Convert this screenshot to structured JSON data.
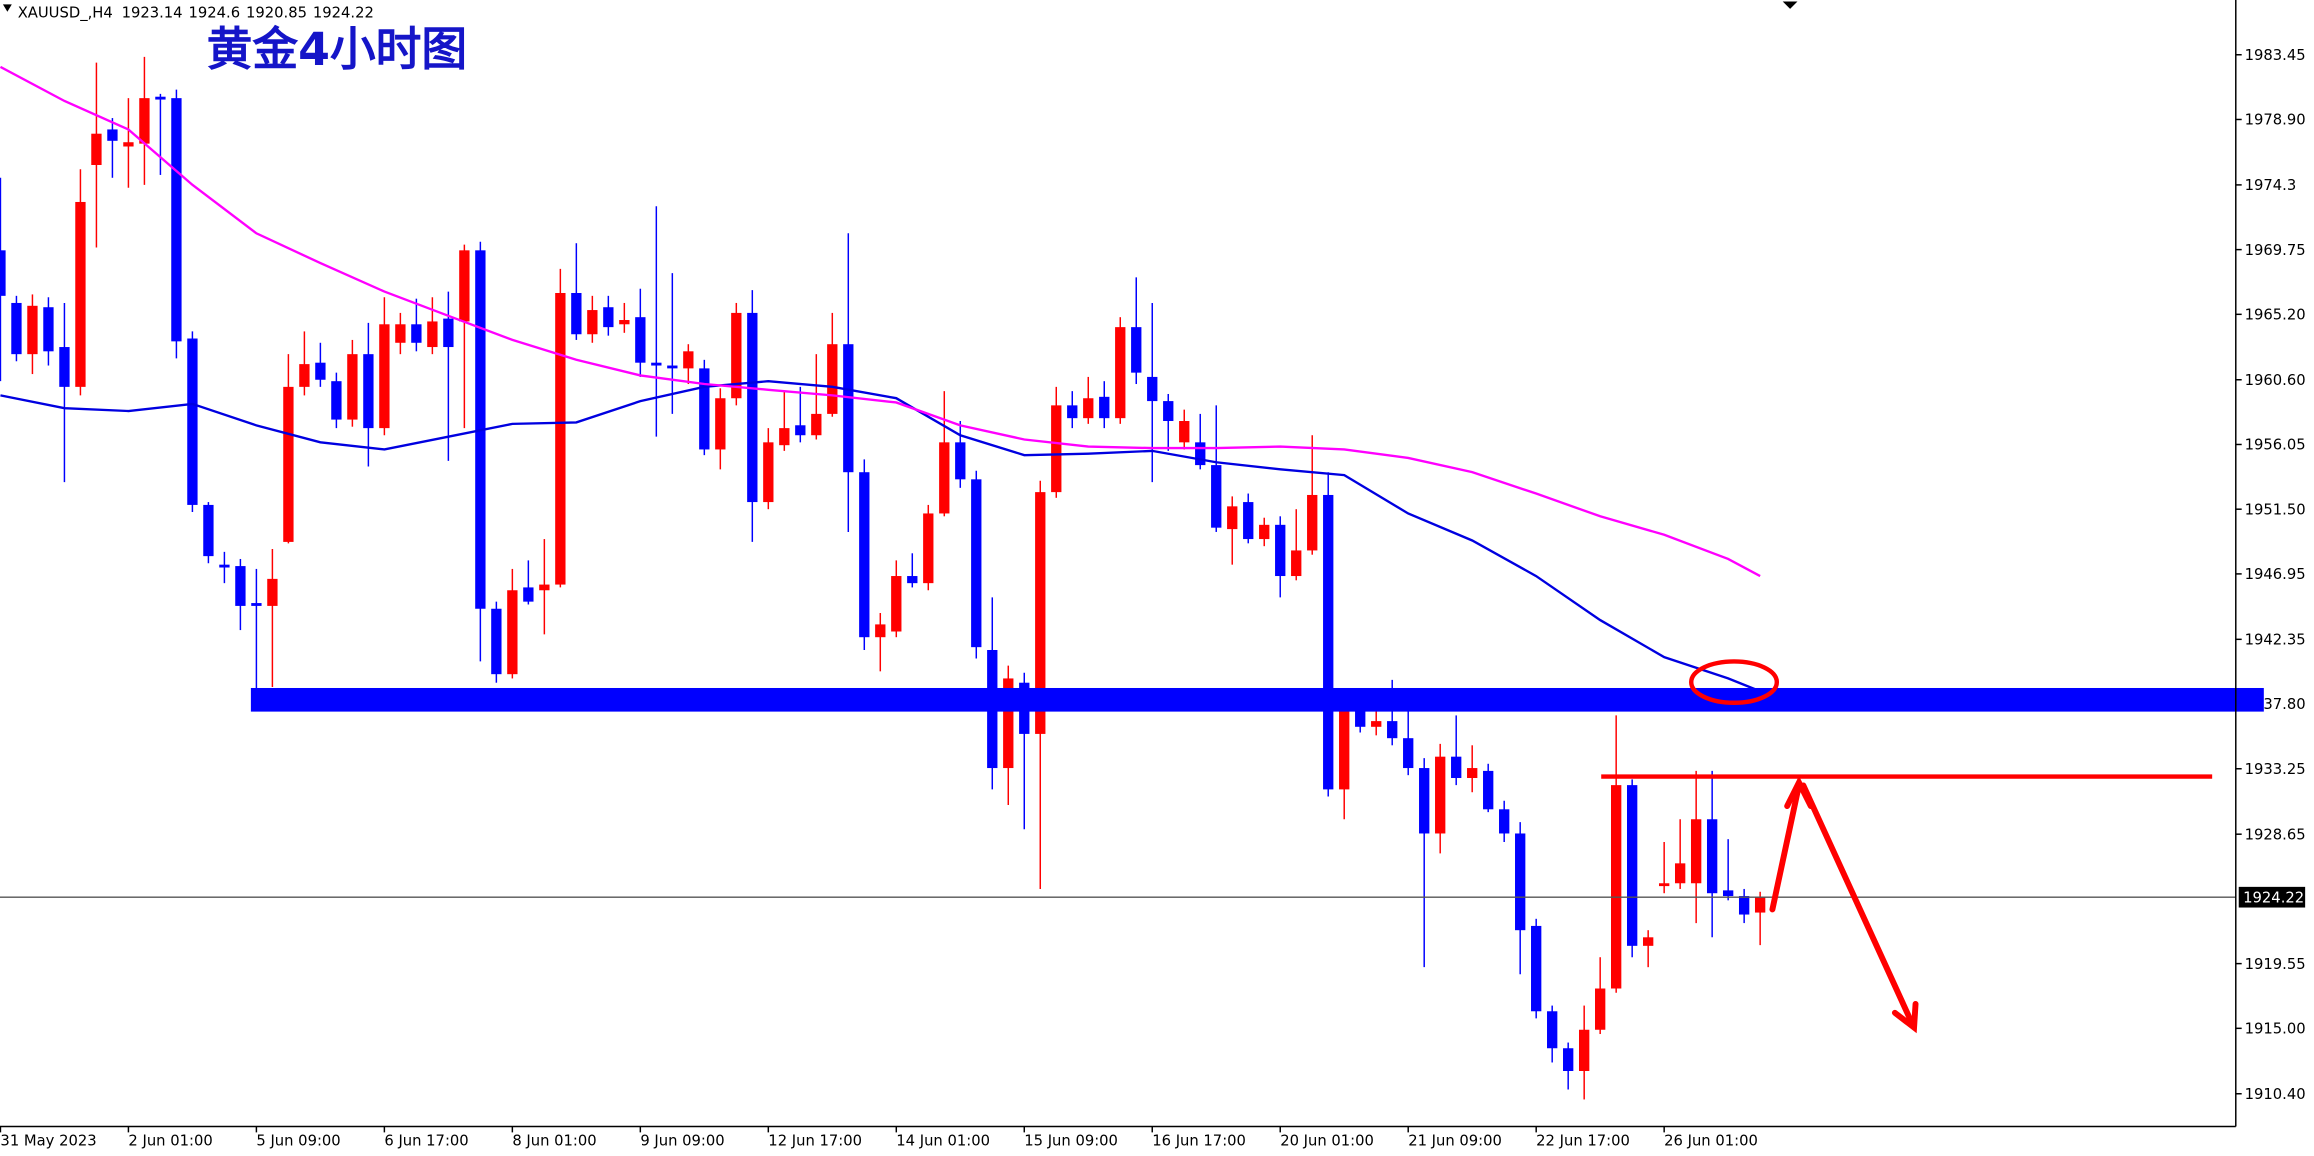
{
  "chart_data": {
    "type": "candlestick",
    "title": "黄金4小时图",
    "symbol": "XAUUSD_,H4",
    "up_color": "#ff0000",
    "down_color": "#0000ff",
    "categories": [
      "31 May 2023",
      null,
      null,
      null,
      null,
      null,
      null,
      null,
      "2 Jun 01:00",
      null,
      null,
      null,
      null,
      null,
      null,
      null,
      "5 Jun 09:00",
      null,
      null,
      null,
      null,
      null,
      null,
      null,
      "6 Jun 17:00",
      null,
      null,
      null,
      null,
      null,
      null,
      null,
      "8 Jun 01:00",
      null,
      null,
      null,
      null,
      null,
      null,
      null,
      "9 Jun 09:00",
      null,
      null,
      null,
      null,
      null,
      null,
      null,
      "12 Jun 17:00",
      null,
      null,
      null,
      null,
      null,
      null,
      null,
      "14 Jun 01:00",
      null,
      null,
      null,
      null,
      null,
      null,
      null,
      "15 Jun 09:00",
      null,
      null,
      null,
      null,
      null,
      null,
      null,
      "16 Jun 17:00",
      null,
      null,
      null,
      null,
      null,
      null,
      null,
      "20 Jun 01:00",
      null,
      null,
      null,
      null,
      null,
      null,
      null,
      "21 Jun 09:00",
      null,
      null,
      null,
      null,
      null,
      null,
      null,
      "22 Jun 17:00",
      null,
      null,
      null,
      null,
      null,
      null,
      null,
      "26 Jun 01:00",
      null,
      null,
      null,
      null,
      null,
      null
    ],
    "open": [
      1969.7,
      1966.0,
      1962.4,
      1965.7,
      1962.9,
      1960.1,
      1975.7,
      1978.2,
      1977.0,
      1977.2,
      1980.5,
      1980.4,
      1963.5,
      1951.8,
      1947.6,
      1947.5,
      1944.9,
      1944.7,
      1949.2,
      1960.1,
      1961.8,
      1960.5,
      1957.8,
      1962.4,
      1957.2,
      1963.2,
      1964.5,
      1962.9,
      1964.9,
      1964.7,
      1969.7,
      1944.5,
      1939.9,
      1946.0,
      1945.8,
      1946.2,
      1966.7,
      1963.8,
      1965.7,
      1964.5,
      1965.0,
      1961.8,
      1961.6,
      1961.4,
      1961.4,
      1955.7,
      1959.3,
      1965.3,
      1952.0,
      1956.0,
      1957.4,
      1956.7,
      1958.2,
      1963.1,
      1954.1,
      1942.5,
      1942.9,
      1946.8,
      1946.3,
      1951.2,
      1956.2,
      1953.6,
      1941.6,
      1933.3,
      1939.3,
      1935.7,
      1952.7,
      1958.8,
      1957.9,
      1959.4,
      1957.9,
      1964.3,
      1960.8,
      1959.1,
      1956.2,
      1956.2,
      1954.6,
      1950.1,
      1952.0,
      1949.4,
      1950.4,
      1946.8,
      1948.6,
      1952.5,
      1931.8,
      1937.3,
      1936.2,
      1936.6,
      1935.4,
      1933.3,
      1928.7,
      1934.1,
      1932.6,
      1933.1,
      1930.4,
      1928.7,
      1922.2,
      1916.2,
      1913.6,
      1912.0,
      1914.9,
      1917.8,
      1932.1,
      1920.8,
      1925.0,
      1925.2,
      1925.2,
      1929.7,
      1924.7,
      1924.3,
      1923.14
    ],
    "high": [
      1974.8,
      1966.5,
      1966.6,
      1966.4,
      1966.0,
      1975.4,
      1982.9,
      1979.0,
      1980.4,
      1983.3,
      1980.7,
      1981.0,
      1964.0,
      1952.0,
      1948.5,
      1948.0,
      1947.3,
      1948.7,
      1962.4,
      1964.0,
      1963.2,
      1961.1,
      1963.4,
      1964.6,
      1966.4,
      1965.3,
      1966.3,
      1966.4,
      1966.8,
      1970.1,
      1970.3,
      1945.0,
      1947.3,
      1947.9,
      1949.4,
      1968.4,
      1970.2,
      1966.5,
      1966.5,
      1966.0,
      1967.0,
      1972.8,
      1968.1,
      1963.1,
      1962.0,
      1960.0,
      1966.0,
      1966.9,
      1957.2,
      1959.8,
      1960.1,
      1962.4,
      1965.3,
      1970.9,
      1955.0,
      1944.2,
      1947.9,
      1948.4,
      1951.8,
      1959.8,
      1957.7,
      1954.2,
      1945.3,
      1940.5,
      1940.0,
      1953.5,
      1960.1,
      1959.8,
      1960.8,
      1960.5,
      1965.0,
      1967.8,
      1966.0,
      1959.6,
      1958.5,
      1958.2,
      1958.8,
      1952.4,
      1952.6,
      1950.9,
      1951.0,
      1951.5,
      1956.7,
      1954.1,
      1938.5,
      1938.2,
      1938.5,
      1939.5,
      1937.5,
      1934.0,
      1935.0,
      1937.0,
      1934.9,
      1933.6,
      1931.0,
      1929.5,
      1922.7,
      1916.6,
      1914.0,
      1916.6,
      1920.0,
      1937.0,
      1932.5,
      1921.9,
      1928.1,
      1929.7,
      1933.1,
      1933.1,
      1928.3,
      1924.8,
      1924.6
    ],
    "low": [
      1960.5,
      1961.9,
      1961.0,
      1961.6,
      1953.4,
      1959.5,
      1969.9,
      1974.8,
      1974.1,
      1974.3,
      1975.0,
      1962.1,
      1951.3,
      1947.7,
      1946.3,
      1943.0,
      1938.5,
      1939.0,
      1949.1,
      1959.5,
      1960.1,
      1957.2,
      1957.3,
      1954.5,
      1956.7,
      1962.4,
      1962.6,
      1962.4,
      1954.9,
      1957.2,
      1940.8,
      1939.3,
      1939.6,
      1944.8,
      1942.7,
      1946.0,
      1963.4,
      1963.2,
      1963.7,
      1963.9,
      1960.8,
      1956.6,
      1958.2,
      1960.3,
      1955.3,
      1954.3,
      1958.8,
      1949.2,
      1951.5,
      1955.6,
      1956.2,
      1956.4,
      1958.0,
      1949.9,
      1941.6,
      1940.1,
      1942.5,
      1946.0,
      1945.8,
      1951.0,
      1953.0,
      1941.0,
      1931.8,
      1930.7,
      1929.0,
      1924.8,
      1952.3,
      1957.2,
      1957.5,
      1957.2,
      1957.5,
      1960.3,
      1953.4,
      1955.6,
      1955.7,
      1954.3,
      1949.9,
      1947.6,
      1949.1,
      1948.9,
      1945.3,
      1946.5,
      1948.3,
      1931.3,
      1929.7,
      1935.8,
      1935.6,
      1934.9,
      1932.8,
      1919.3,
      1927.3,
      1932.1,
      1931.6,
      1930.2,
      1928.1,
      1918.8,
      1915.7,
      1912.6,
      1910.7,
      1910.0,
      1914.6,
      1917.5,
      1920.0,
      1919.3,
      1924.5,
      1924.8,
      1922.4,
      1921.4,
      1924.0,
      1922.4,
      1920.85
    ],
    "close": [
      1966.5,
      1962.4,
      1965.8,
      1962.6,
      1960.1,
      1973.1,
      1977.9,
      1977.4,
      1977.3,
      1980.4,
      1980.3,
      1963.3,
      1951.8,
      1948.2,
      1947.4,
      1944.7,
      1944.7,
      1946.6,
      1960.1,
      1961.7,
      1960.6,
      1957.8,
      1962.4,
      1957.2,
      1964.5,
      1964.5,
      1963.2,
      1964.7,
      1962.9,
      1969.7,
      1944.5,
      1939.9,
      1945.8,
      1945.0,
      1946.2,
      1966.7,
      1963.8,
      1965.5,
      1964.3,
      1964.8,
      1961.8,
      1961.6,
      1961.4,
      1962.6,
      1955.7,
      1959.3,
      1965.3,
      1952.0,
      1956.2,
      1957.2,
      1956.7,
      1958.2,
      1963.1,
      1954.1,
      1942.5,
      1943.4,
      1946.8,
      1946.3,
      1951.2,
      1956.2,
      1953.6,
      1941.8,
      1933.3,
      1939.6,
      1935.7,
      1952.7,
      1958.8,
      1957.9,
      1959.3,
      1957.9,
      1964.3,
      1961.1,
      1959.1,
      1957.7,
      1957.7,
      1954.6,
      1950.2,
      1951.7,
      1949.4,
      1950.4,
      1946.8,
      1948.6,
      1952.5,
      1931.8,
      1937.3,
      1936.2,
      1936.6,
      1935.4,
      1933.3,
      1928.7,
      1934.1,
      1932.6,
      1933.3,
      1930.4,
      1928.7,
      1921.9,
      1916.2,
      1913.6,
      1912.0,
      1914.9,
      1917.8,
      1932.1,
      1920.8,
      1921.4,
      1925.2,
      1926.6,
      1929.7,
      1924.5,
      1924.3,
      1923.0,
      1924.22
    ],
    "overlays": [
      {
        "color": "#0000e0",
        "x": [
          0,
          4,
          8,
          12,
          16,
          20,
          24,
          28,
          32,
          36,
          40,
          44,
          48,
          52,
          56,
          60,
          64,
          68,
          72,
          76,
          80,
          84,
          88,
          92,
          96,
          100,
          104,
          108,
          110
        ],
        "values": [
          1959.5,
          1958.6,
          1958.4,
          1958.9,
          1957.4,
          1956.2,
          1955.7,
          1956.6,
          1957.5,
          1957.6,
          1959.1,
          1960.1,
          1960.5,
          1960.1,
          1959.3,
          1956.7,
          1955.3,
          1955.4,
          1955.6,
          1954.8,
          1954.3,
          1953.9,
          1951.2,
          1949.3,
          1946.8,
          1943.7,
          1941.1,
          1939.6,
          1938.7
        ]
      },
      {
        "color": "#ff00ff",
        "x": [
          0,
          4,
          8,
          12,
          16,
          20,
          24,
          28,
          32,
          36,
          40,
          44,
          48,
          52,
          56,
          60,
          64,
          68,
          72,
          76,
          80,
          84,
          88,
          92,
          96,
          100,
          104,
          108,
          110
        ],
        "values": [
          1982.6,
          1980.2,
          1978.2,
          1974.3,
          1970.9,
          1968.8,
          1966.8,
          1965.1,
          1963.4,
          1962.0,
          1960.9,
          1960.3,
          1959.9,
          1959.5,
          1959.0,
          1957.4,
          1956.4,
          1955.9,
          1955.8,
          1955.8,
          1955.9,
          1955.7,
          1955.1,
          1954.1,
          1952.6,
          1951.0,
          1949.7,
          1948.0,
          1946.8
        ]
      }
    ],
    "ylim": [
      1908.1,
      1987.3
    ],
    "yticks": [
      1983.45,
      {
        "value": 1978.9,
        "label": "1978.90"
      },
      1974.3,
      1969.75,
      {
        "value": 1965.2,
        "label": "1965.20"
      },
      {
        "value": 1960.6,
        "label": "1960.60"
      },
      1956.05,
      {
        "value": 1951.5,
        "label": "1951.50"
      },
      1946.95,
      1942.35,
      {
        "value": 1937.8,
        "label": "1937.80"
      },
      1933.25,
      1928.65,
      1919.55,
      {
        "value": 1915,
        "label": "1915.00"
      },
      {
        "value": 1910.4,
        "label": "1910.40"
      }
    ]
  }
}
